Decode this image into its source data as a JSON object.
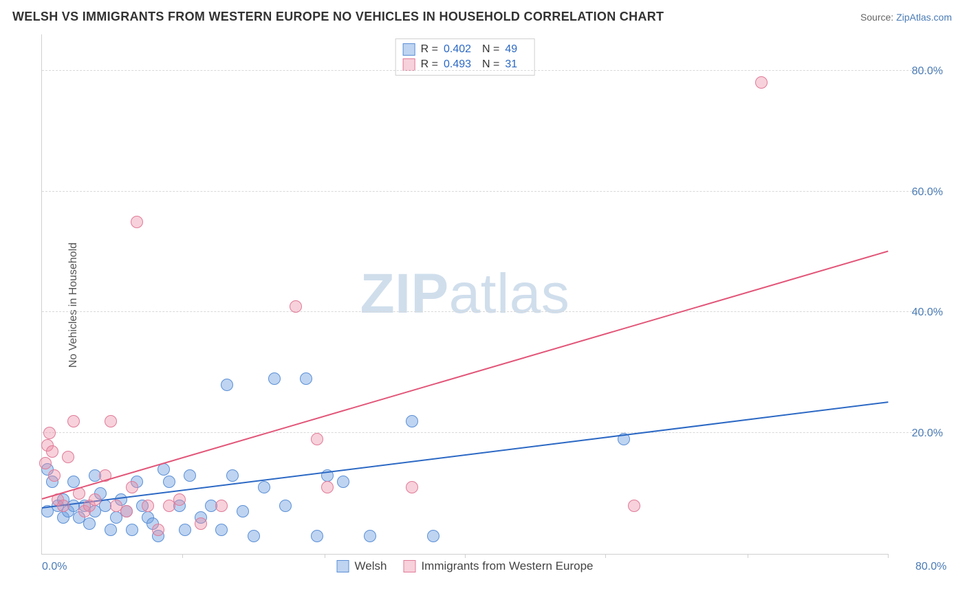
{
  "header": {
    "title": "WELSH VS IMMIGRANTS FROM WESTERN EUROPE NO VEHICLES IN HOUSEHOLD CORRELATION CHART",
    "source_label": "Source: ",
    "source_link": "ZipAtlas.com"
  },
  "chart": {
    "type": "scatter",
    "ylabel": "No Vehicles in Household",
    "xlim": [
      0,
      80
    ],
    "ylim": [
      0,
      86
    ],
    "xlim_label_left": "0.0%",
    "xlim_label_right": "80.0%",
    "yticks": [
      {
        "v": 20,
        "label": "20.0%"
      },
      {
        "v": 40,
        "label": "40.0%"
      },
      {
        "v": 60,
        "label": "60.0%"
      },
      {
        "v": 80,
        "label": "80.0%"
      }
    ],
    "xtick_positions": [
      13.3,
      26.7,
      40,
      53.3,
      66.7,
      80
    ],
    "watermark": {
      "bold": "ZIP",
      "rest": "atlas"
    },
    "colors": {
      "blue_fill": "rgba(110,160,225,0.45)",
      "blue_stroke": "#5b8fd6",
      "blue_line": "#2b68c4",
      "pink_fill": "rgba(235,140,165,0.40)",
      "pink_stroke": "#e07a98",
      "pink_line": "#e25578",
      "grid": "#d8d8d8",
      "axis": "#d0d0d0",
      "text_blue": "#4a7bb5"
    },
    "marker_radius": 9,
    "series": [
      {
        "key": "welsh",
        "label": "Welsh",
        "color_fill": "rgba(110,160,225,0.45)",
        "color_stroke": "#5b8fd6",
        "trend_color": "#2b68c4",
        "R": "0.402",
        "N": "49",
        "trend": {
          "x1": 0,
          "y1": 7.5,
          "x2": 80,
          "y2": 25
        },
        "points": [
          [
            0.5,
            7
          ],
          [
            0.5,
            14
          ],
          [
            1,
            12
          ],
          [
            1.5,
            8
          ],
          [
            2,
            6
          ],
          [
            2,
            9
          ],
          [
            2.5,
            7
          ],
          [
            3,
            8
          ],
          [
            3,
            12
          ],
          [
            3.5,
            6
          ],
          [
            4,
            8
          ],
          [
            4.5,
            5
          ],
          [
            5,
            7
          ],
          [
            5,
            13
          ],
          [
            5.5,
            10
          ],
          [
            6,
            8
          ],
          [
            6.5,
            4
          ],
          [
            7,
            6
          ],
          [
            7.5,
            9
          ],
          [
            8,
            7
          ],
          [
            8.5,
            4
          ],
          [
            9,
            12
          ],
          [
            9.5,
            8
          ],
          [
            10,
            6
          ],
          [
            10.5,
            5
          ],
          [
            11,
            3
          ],
          [
            11.5,
            14
          ],
          [
            12,
            12
          ],
          [
            13,
            8
          ],
          [
            13.5,
            4
          ],
          [
            14,
            13
          ],
          [
            15,
            6
          ],
          [
            16,
            8
          ],
          [
            17,
            4
          ],
          [
            17.5,
            28
          ],
          [
            18,
            13
          ],
          [
            19,
            7
          ],
          [
            20,
            3
          ],
          [
            21,
            11
          ],
          [
            22,
            29
          ],
          [
            23,
            8
          ],
          [
            25,
            29
          ],
          [
            26,
            3
          ],
          [
            27,
            13
          ],
          [
            28.5,
            12
          ],
          [
            31,
            3
          ],
          [
            35,
            22
          ],
          [
            37,
            3
          ],
          [
            55,
            19
          ]
        ]
      },
      {
        "key": "immigrants",
        "label": "Immigrants from Western Europe",
        "color_fill": "rgba(235,140,165,0.40)",
        "color_stroke": "#e07a98",
        "trend_color": "#e25578",
        "R": "0.493",
        "N": "31",
        "trend": {
          "x1": 0,
          "y1": 9,
          "x2": 80,
          "y2": 50
        },
        "points": [
          [
            0.3,
            15
          ],
          [
            0.5,
            18
          ],
          [
            0.7,
            20
          ],
          [
            1,
            17
          ],
          [
            1.2,
            13
          ],
          [
            1.5,
            9
          ],
          [
            2,
            8
          ],
          [
            2.5,
            16
          ],
          [
            3,
            22
          ],
          [
            3.5,
            10
          ],
          [
            4,
            7
          ],
          [
            4.5,
            8
          ],
          [
            5,
            9
          ],
          [
            6,
            13
          ],
          [
            6.5,
            22
          ],
          [
            7,
            8
          ],
          [
            8,
            7
          ],
          [
            8.5,
            11
          ],
          [
            9,
            55
          ],
          [
            10,
            8
          ],
          [
            11,
            4
          ],
          [
            12,
            8
          ],
          [
            13,
            9
          ],
          [
            15,
            5
          ],
          [
            17,
            8
          ],
          [
            24,
            41
          ],
          [
            26,
            19
          ],
          [
            27,
            11
          ],
          [
            35,
            11
          ],
          [
            56,
            8
          ],
          [
            68,
            78
          ]
        ]
      }
    ],
    "legend_corr_cols": {
      "r_label": "R =",
      "n_label": "N ="
    }
  }
}
